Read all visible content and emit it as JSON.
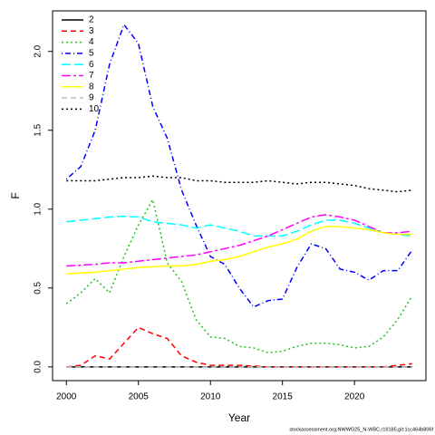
{
  "chart_data": {
    "type": "line",
    "xlabel": "Year",
    "ylabel": "F",
    "footer": "stockassessment.org,NWWG25_N-WBC,r19185,git:1cc464b806f",
    "x": [
      2000,
      2001,
      2002,
      2003,
      2004,
      2005,
      2006,
      2007,
      2008,
      2009,
      2010,
      2011,
      2012,
      2013,
      2014,
      2015,
      2016,
      2017,
      2018,
      2019,
      2020,
      2021,
      2022,
      2023,
      2024
    ],
    "series": [
      {
        "name": "2",
        "color": "#000000",
        "dash": "",
        "values": [
          0,
          0,
          0,
          0,
          0,
          0,
          0,
          0,
          0,
          0,
          0,
          0,
          0,
          0,
          0,
          0,
          0,
          0,
          0,
          0,
          0,
          0,
          0,
          0,
          0
        ]
      },
      {
        "name": "3",
        "color": "#ff0000",
        "dash": "6 4",
        "values": [
          0,
          0.01,
          0.07,
          0.05,
          0.15,
          0.25,
          0.21,
          0.18,
          0.07,
          0.03,
          0.01,
          0.01,
          0.01,
          0.005,
          0,
          0,
          0,
          0,
          0,
          0,
          0,
          0,
          0,
          0.01,
          0.02
        ]
      },
      {
        "name": "4",
        "color": "#22c322",
        "dash": "2 3",
        "values": [
          0.4,
          0.47,
          0.56,
          0.47,
          0.7,
          0.9,
          1.06,
          0.66,
          0.54,
          0.3,
          0.19,
          0.18,
          0.13,
          0.12,
          0.09,
          0.1,
          0.13,
          0.15,
          0.15,
          0.14,
          0.12,
          0.13,
          0.19,
          0.3,
          0.45
        ]
      },
      {
        "name": "5",
        "color": "#0000ff",
        "dash": "1 3 6 3",
        "values": [
          1.19,
          1.27,
          1.5,
          1.92,
          2.17,
          2.05,
          1.65,
          1.45,
          1.12,
          0.9,
          0.7,
          0.65,
          0.5,
          0.38,
          0.42,
          0.43,
          0.63,
          0.78,
          0.75,
          0.62,
          0.6,
          0.55,
          0.61,
          0.61,
          0.74
        ]
      },
      {
        "name": "6",
        "color": "#00ffff",
        "dash": "10 4",
        "values": [
          0.92,
          0.93,
          0.94,
          0.95,
          0.955,
          0.95,
          0.92,
          0.91,
          0.9,
          0.88,
          0.9,
          0.88,
          0.86,
          0.83,
          0.83,
          0.83,
          0.86,
          0.9,
          0.93,
          0.93,
          0.91,
          0.88,
          0.85,
          0.84,
          0.83
        ]
      },
      {
        "name": "7",
        "color": "#ff00ff",
        "dash": "10 3 3 3",
        "values": [
          0.64,
          0.645,
          0.65,
          0.66,
          0.66,
          0.67,
          0.68,
          0.69,
          0.7,
          0.71,
          0.73,
          0.75,
          0.77,
          0.8,
          0.83,
          0.87,
          0.91,
          0.95,
          0.965,
          0.95,
          0.93,
          0.89,
          0.85,
          0.85,
          0.86
        ]
      },
      {
        "name": "8",
        "color": "#ffff00",
        "dash": "",
        "values": [
          0.59,
          0.595,
          0.6,
          0.61,
          0.62,
          0.63,
          0.635,
          0.64,
          0.64,
          0.65,
          0.67,
          0.68,
          0.7,
          0.73,
          0.76,
          0.78,
          0.81,
          0.86,
          0.89,
          0.89,
          0.88,
          0.87,
          0.85,
          0.84,
          0.84
        ]
      },
      {
        "name": "9",
        "color": "#bebebe",
        "dash": "6 4",
        "values": [
          0,
          0,
          0,
          0,
          0,
          0,
          0,
          0,
          0,
          0,
          0,
          0,
          0,
          0,
          0,
          0,
          0,
          0,
          0,
          0,
          0,
          0,
          0,
          0,
          0
        ]
      },
      {
        "name": "10",
        "color": "#000000",
        "dash": "2 3",
        "values": [
          1.18,
          1.18,
          1.18,
          1.19,
          1.2,
          1.2,
          1.21,
          1.2,
          1.2,
          1.18,
          1.18,
          1.17,
          1.17,
          1.17,
          1.18,
          1.17,
          1.16,
          1.17,
          1.17,
          1.16,
          1.15,
          1.13,
          1.12,
          1.11,
          1.12
        ]
      }
    ],
    "xlim": [
      1999.04,
      2024.96
    ],
    "xticks": [
      2000,
      2005,
      2010,
      2015,
      2020
    ],
    "ylim": [
      -0.087,
      2.257
    ],
    "yticks": [
      {
        "value": 0,
        "label": "0.0"
      },
      {
        "value": 0.5,
        "label": "0.5"
      },
      {
        "value": 1,
        "label": "1.0"
      },
      {
        "value": 1.5,
        "label": "1.5"
      },
      {
        "value": 2,
        "label": "2.0"
      }
    ],
    "legend": "top-left"
  }
}
